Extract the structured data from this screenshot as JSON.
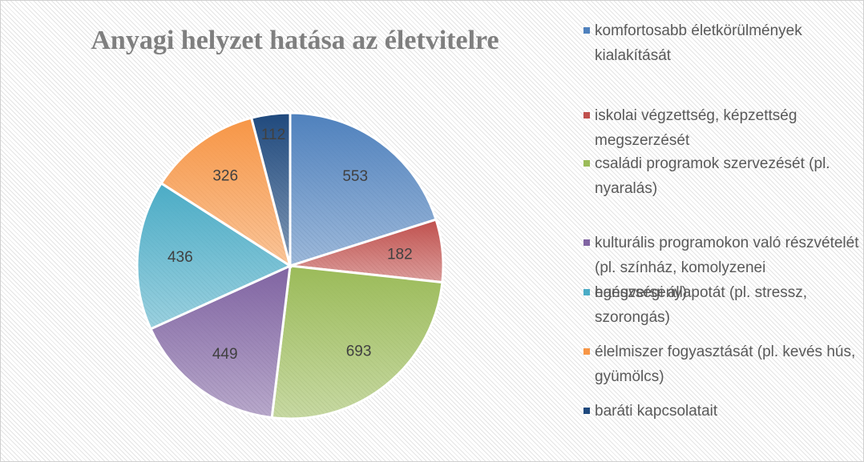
{
  "chart_data": {
    "type": "pie",
    "title": "Anyagi helyzet hatása az életvitelre",
    "categories": [
      "komfortosabb életkörülmények kialakítását",
      "iskolai végzettség, képzettség megszerzését",
      "családi programok szervezését (pl. nyaralás)",
      "kulturális programokon való részvételét (pl. színház, komolyzenei hangverseny)",
      "egészségi állapotát (pl. stressz, szorongás)",
      "élelmiszer fogyasztását (pl. kevés hús, gyümölcs)",
      "baráti kapcsolatait"
    ],
    "values": [
      553,
      182,
      693,
      449,
      436,
      326,
      112
    ],
    "colors": [
      "#4f81bd",
      "#c0504d",
      "#9bbb59",
      "#8064a2",
      "#4bacc6",
      "#f79646",
      "#1f497d"
    ],
    "legend": "right"
  }
}
